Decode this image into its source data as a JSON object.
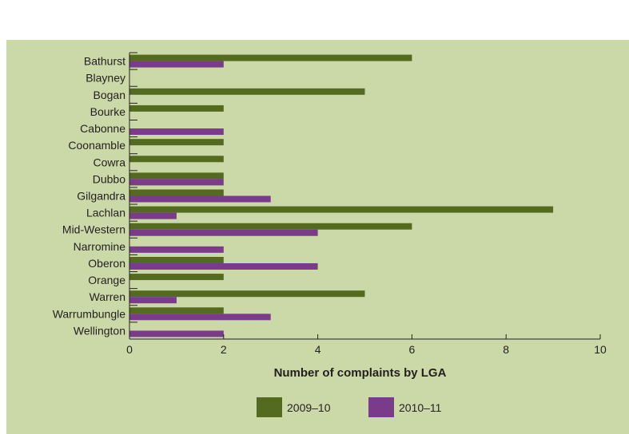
{
  "colors": {
    "background": "#cbd9a8",
    "series_2009": "#546a1e",
    "series_2010": "#7b3b8b",
    "axis": "#231f20"
  },
  "chart_data": {
    "type": "bar",
    "orientation": "horizontal",
    "categories": [
      "Bathurst",
      "Blayney",
      "Bogan",
      "Bourke",
      "Cabonne",
      "Coonamble",
      "Cowra",
      "Dubbo",
      "Gilgandra",
      "Lachlan",
      "Mid-Western",
      "Narromine",
      "Oberon",
      "Orange",
      "Warren",
      "Warrumbungle",
      "Wellington"
    ],
    "series": [
      {
        "name": "2009–10",
        "values": [
          6,
          0,
          5,
          2,
          0,
          2,
          2,
          2,
          2,
          9,
          6,
          0,
          2,
          2,
          5,
          2,
          0
        ]
      },
      {
        "name": "2010–11",
        "values": [
          2,
          0,
          0,
          0,
          2,
          0,
          0,
          2,
          3,
          1,
          4,
          2,
          4,
          0,
          1,
          3,
          2
        ]
      }
    ],
    "xlabel": "Number of complaints by LGA",
    "ylabel": "",
    "xlim": [
      0,
      10
    ],
    "xticks": [
      0,
      2,
      4,
      6,
      8,
      10
    ],
    "grid": false,
    "legend": "bottom-center"
  }
}
